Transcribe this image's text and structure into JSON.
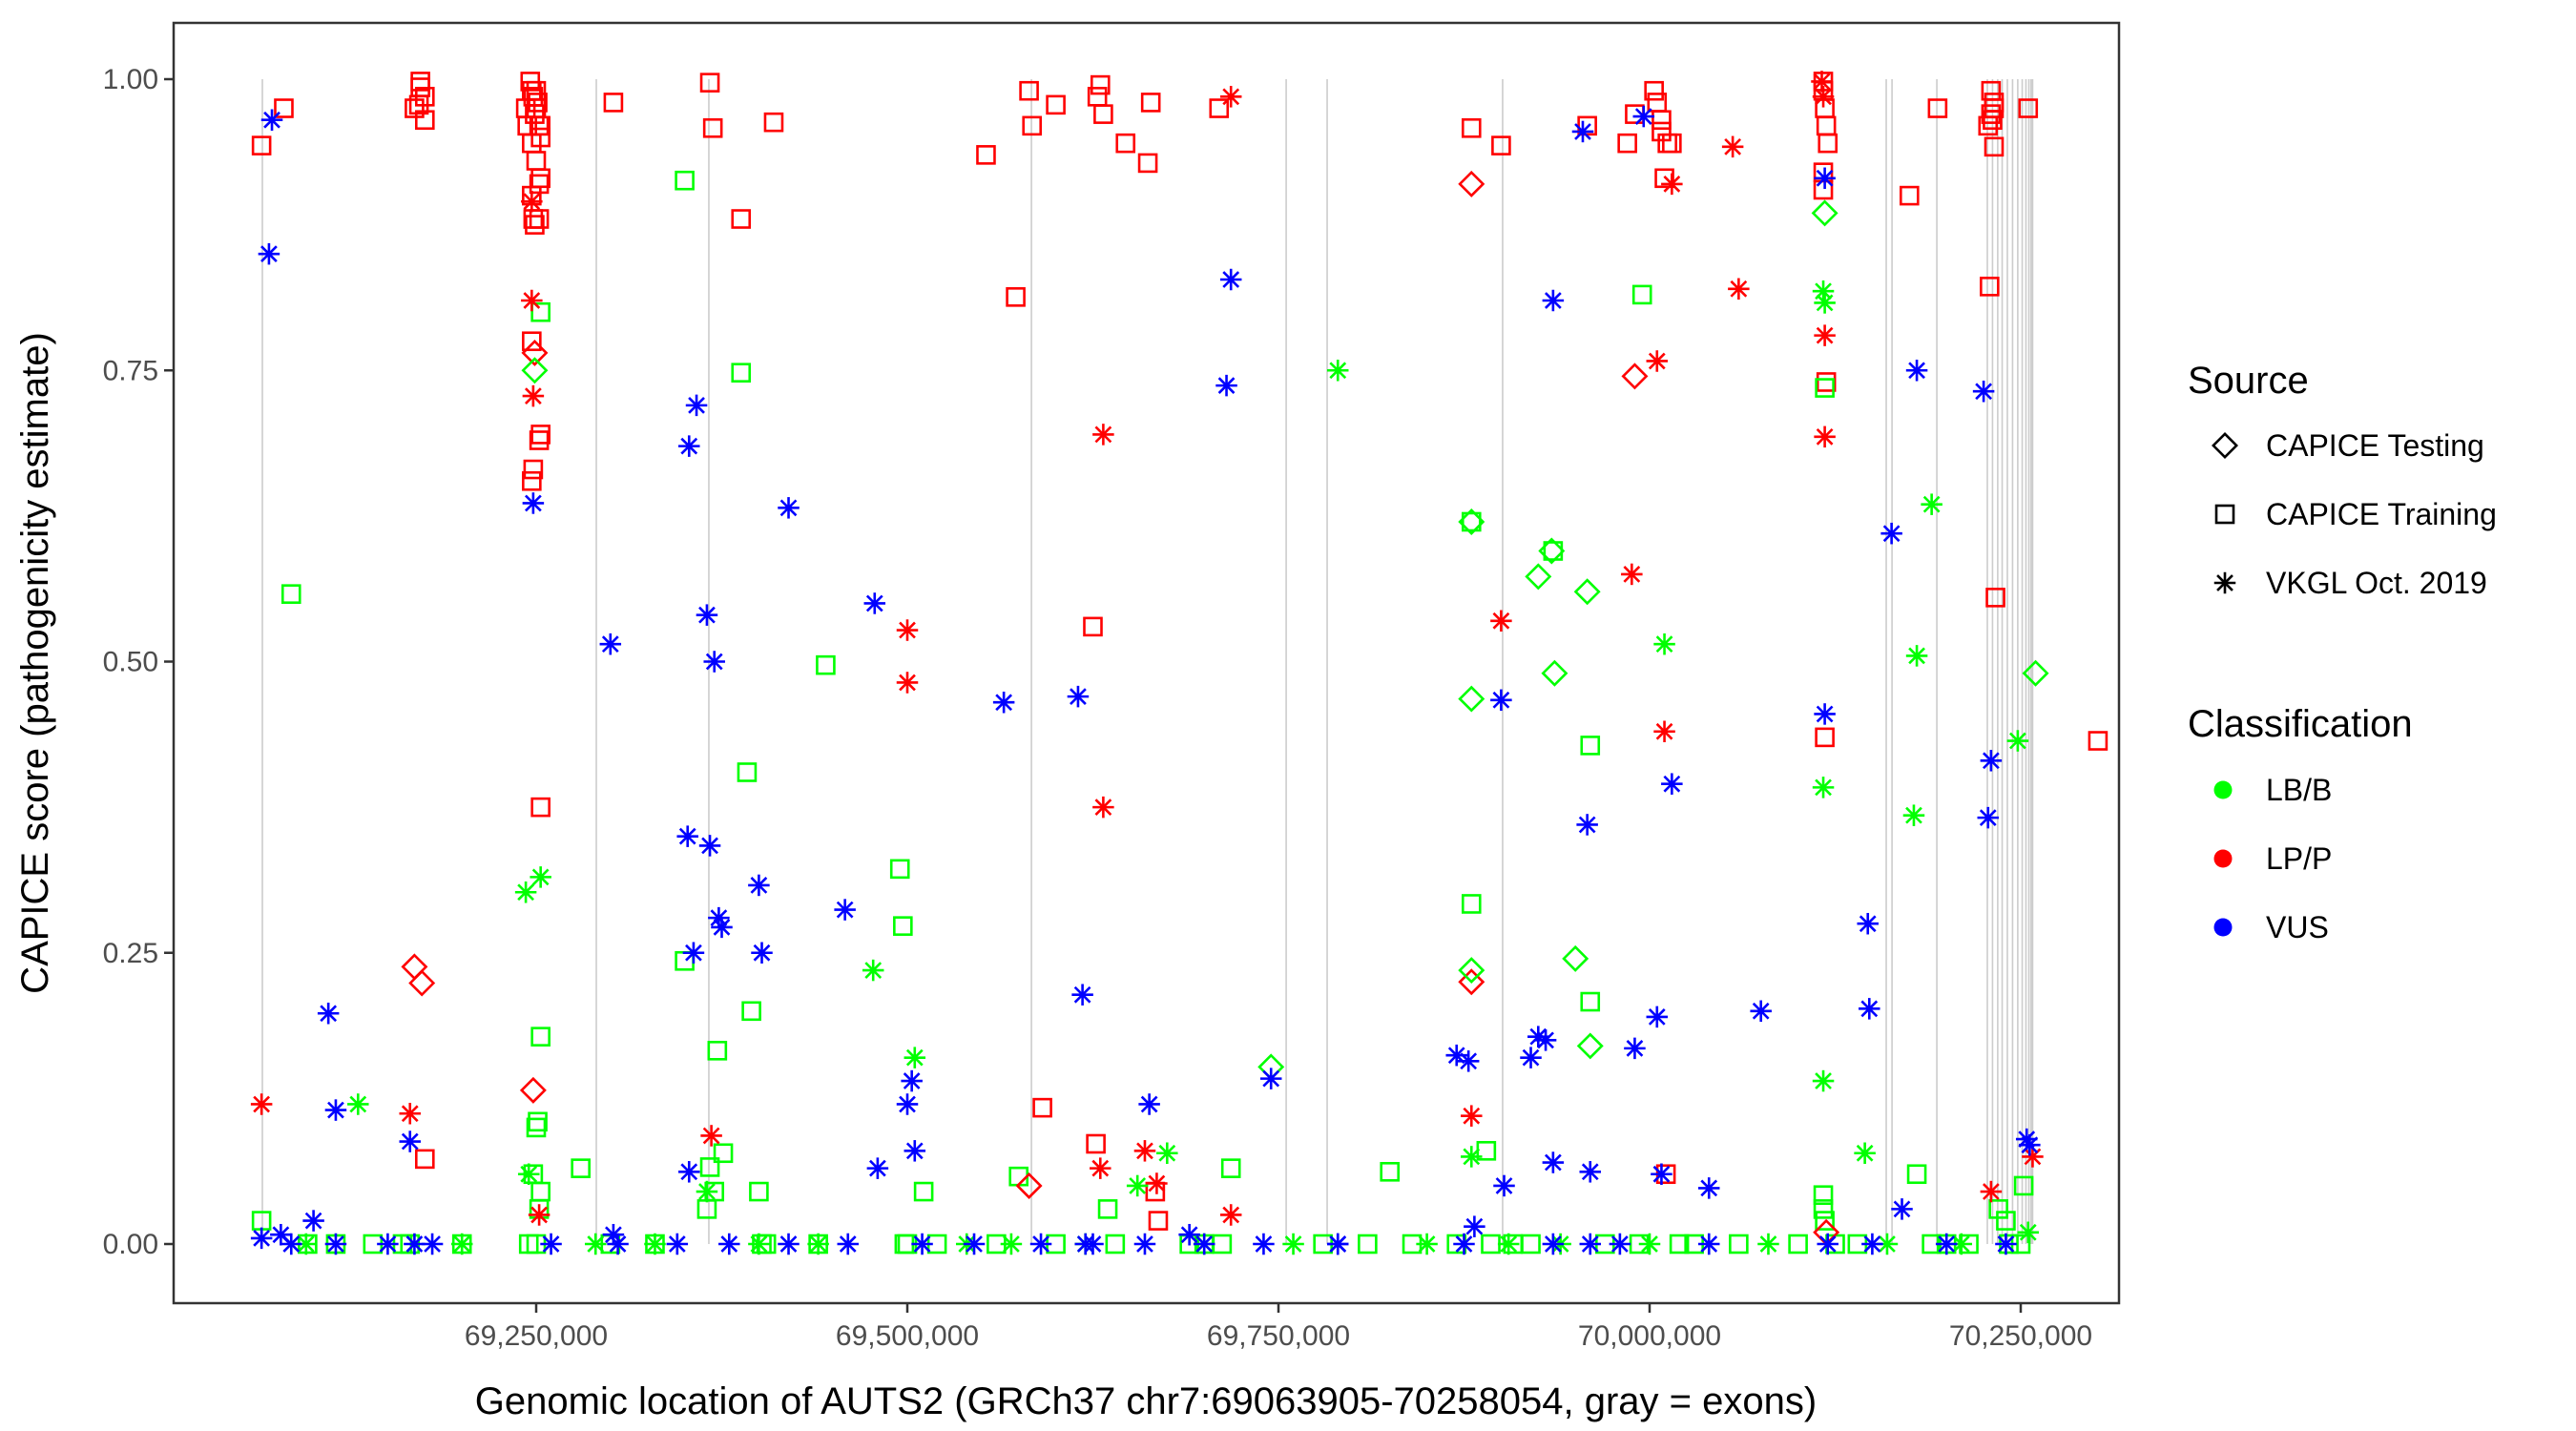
{
  "chart_data": {
    "type": "scatter",
    "title": "",
    "xlabel": "Genomic location of AUTS2 (GRCh37 chr7:69063905-70258054, gray = exons)",
    "ylabel": "CAPICE score (pathogenicity estimate)",
    "xlim": [
      69004000,
      70315000
    ],
    "ylim": [
      -0.05,
      1.05
    ],
    "x_ticks": [
      69250000,
      69500000,
      69750000,
      70000000,
      70250000
    ],
    "x_tick_labels": [
      "69,250,000",
      "69,500,000",
      "69,750,000",
      "70,000,000",
      "70,250,000"
    ],
    "y_ticks": [
      0,
      0.25,
      0.5,
      0.75,
      1.0
    ],
    "y_tick_labels": [
      "0.00",
      "0.25",
      "0.50",
      "0.75",
      "1.00"
    ],
    "grid": false,
    "exon_lines": [
      69065550,
      69290500,
      69366300,
      69583600,
      69755200,
      69782800,
      69901000,
      70159400,
      70163300,
      70193500,
      70227500,
      70231000,
      70234500,
      70237500,
      70241000,
      70244500,
      70248000,
      70251000,
      70253500,
      70255500,
      70257000,
      70258000
    ],
    "exon_color": "#cccccc",
    "legend": {
      "placement": "right",
      "source": {
        "title": "Source",
        "items": [
          {
            "label": "CAPICE Testing",
            "shape": "diamond"
          },
          {
            "label": "CAPICE Training",
            "shape": "square"
          },
          {
            "label": "VKGL Oct. 2019",
            "shape": "asterisk"
          }
        ]
      },
      "classification": {
        "title": "Classification",
        "items": [
          {
            "label": "LB/B",
            "color": "#00ff00"
          },
          {
            "label": "LP/P",
            "color": "#ff0000"
          },
          {
            "label": "VUS",
            "color": "#0000ff"
          }
        ]
      }
    },
    "series": [
      {
        "name": "CAPICE Training / LP/P",
        "shape": "square",
        "color": "#ff0000",
        "x": [
          69065000,
          69080000,
          69168000,
          69171000,
          69172000,
          69172000,
          69175000,
          69175000,
          69243000,
          69246000,
          69247000,
          69248000,
          69249000,
          69250000,
          69251000,
          69252000,
          69253000,
          69250000,
          69252000,
          69248000,
          69247000,
          69249000,
          69252000,
          69247000,
          69248000,
          69253000,
          69252000,
          69253000,
          69247000,
          69247000,
          69244000,
          69253000,
          69250000,
          69253000,
          69302000,
          69367000,
          69369000,
          69388000,
          69410000,
          69553000,
          69573000,
          69582000,
          69584000,
          69600000,
          69625000,
          69628000,
          69630000,
          69632000,
          69647000,
          69662000,
          69664000,
          69710000,
          69880000,
          69900000,
          69958000,
          69985000,
          69990000,
          70003000,
          70005000,
          70008000,
          70008000,
          70010000,
          70012000,
          70015000,
          70117000,
          70117000,
          70118000,
          70119000,
          70120000,
          70117000,
          70118000,
          70117000,
          70119000,
          70175000,
          70194000,
          70230000,
          70232000,
          70228000,
          70231000,
          70232000,
          70229000,
          70233000,
          70255000,
          70230000,
          70232000,
          70302000,
          69175000,
          69591000,
          69627000,
          69667000,
          70011000,
          69669000
        ],
        "y": [
          0.943,
          0.975,
          0.975,
          0.978,
          0.993,
          0.998,
          0.985,
          0.965,
          0.975,
          0.998,
          0.99,
          0.985,
          0.97,
          0.99,
          0.98,
          0.96,
          0.95,
          0.93,
          0.91,
          0.88,
          0.9,
          0.875,
          0.88,
          0.775,
          0.665,
          0.695,
          0.69,
          0.375,
          0.655,
          0.945,
          0.96,
          0.96,
          0.975,
          0.915,
          0.98,
          0.997,
          0.958,
          0.88,
          0.963,
          0.935,
          0.813,
          0.99,
          0.96,
          0.978,
          0.53,
          0.985,
          0.995,
          0.97,
          0.945,
          0.928,
          0.98,
          0.975,
          0.958,
          0.943,
          0.96,
          0.945,
          0.97,
          0.99,
          0.98,
          0.965,
          0.955,
          0.915,
          0.945,
          0.945,
          0.998,
          0.99,
          0.975,
          0.96,
          0.945,
          0.92,
          0.435,
          0.905,
          0.74,
          0.9,
          0.975,
          0.99,
          0.98,
          0.96,
          0.965,
          0.942,
          0.822,
          0.555,
          0.975,
          0.97,
          0.975,
          0.432,
          0.073,
          0.117,
          0.086,
          0.045,
          0.06,
          0.02
        ]
      },
      {
        "name": "CAPICE Training / LB/B",
        "shape": "square",
        "color": "#00ff00",
        "x": [
          69065000,
          69085000,
          69253000,
          69250000,
          69251000,
          69253000,
          69248000,
          69253000,
          69252000,
          69280000,
          69350000,
          69367000,
          69388000,
          69392000,
          69395000,
          69372000,
          69370000,
          69365000,
          69400000,
          69445000,
          69495000,
          69497000,
          69511000,
          69575000,
          69635000,
          69718000,
          69880000,
          69880000,
          69890000,
          69935000,
          69960000,
          69960000,
          69995000,
          70118000,
          70117000,
          70117000,
          70118000,
          70180000,
          70252000,
          70240000,
          70235000,
          69245000,
          69250000,
          69165000,
          69350000,
          69376000,
          69402000,
          69498000,
          69500000,
          69690000,
          69712000,
          69825000,
          69893000,
          69908000,
          69993000,
          70020000,
          70125000,
          70200000,
          70242000,
          69096000,
          69115000,
          69140000,
          69160000,
          69200000,
          69300000,
          69330000,
          69405000,
          69440000,
          69520000,
          69560000,
          69600000,
          69640000,
          69700000,
          69780000,
          69810000,
          69840000,
          69870000,
          69920000,
          69970000,
          70030000,
          70060000,
          70100000,
          70140000,
          70190000,
          70215000,
          70250000
        ],
        "y": [
          0.02,
          0.558,
          0.8,
          0.1,
          0.105,
          0.178,
          0.06,
          0.045,
          0.03,
          0.065,
          0.913,
          0.066,
          0.748,
          0.405,
          0.2,
          0.166,
          0.045,
          0.03,
          0.045,
          0.497,
          0.322,
          0.273,
          0.045,
          0.058,
          0.03,
          0.065,
          0.292,
          0.62,
          0.08,
          0.595,
          0.428,
          0.208,
          0.815,
          0.735,
          0.042,
          0.03,
          0.02,
          0.06,
          0.05,
          0.02,
          0.03,
          0.0,
          0.0,
          0.0,
          0.243,
          0.078,
          0.0,
          0.0,
          0.0,
          0.0,
          0.0,
          0.062,
          0.0,
          0.0,
          0.0,
          0.0,
          0.0,
          0.0,
          0.0,
          0.0,
          0.0,
          0.0,
          0.0,
          0.0,
          0.0,
          0.0,
          0.0,
          0.0,
          0.0,
          0.0,
          0.0,
          0.0,
          0.0,
          0.0,
          0.0,
          0.0,
          0.0,
          0.0,
          0.0,
          0.0,
          0.0,
          0.0,
          0.0,
          0.0,
          0.0,
          0.0
        ]
      },
      {
        "name": "CAPICE Testing / LP/P",
        "shape": "diamond",
        "color": "#ff0000",
        "x": [
          69168000,
          69173000,
          69249000,
          69248000,
          69582000,
          69880000,
          69880000,
          69990000,
          70119000
        ],
        "y": [
          0.238,
          0.224,
          0.765,
          0.132,
          0.05,
          0.91,
          0.225,
          0.745,
          0.01
        ]
      },
      {
        "name": "CAPICE Testing / LB/B",
        "shape": "diamond",
        "color": "#00ff00",
        "x": [
          69249000,
          69745000,
          69880000,
          69880000,
          69880000,
          69925000,
          69934000,
          69936000,
          69950000,
          69958000,
          69960000,
          70118000,
          70260000
        ],
        "y": [
          0.75,
          0.152,
          0.62,
          0.468,
          0.235,
          0.573,
          0.595,
          0.49,
          0.245,
          0.56,
          0.17,
          0.885,
          0.49
        ]
      },
      {
        "name": "VKGL Oct. 2019 / LP/P",
        "shape": "asterisk",
        "color": "#ff0000",
        "x": [
          69065000,
          69165000,
          69247000,
          69248000,
          69247000,
          69252000,
          69368000,
          69500000,
          69500000,
          69632000,
          69632000,
          69630000,
          69660000,
          69668000,
          69718000,
          69718000,
          69880000,
          69900000,
          69988000,
          70005000,
          70010000,
          70015000,
          70056000,
          70060000,
          70118000,
          70118000,
          70116000,
          70117000,
          70230000,
          70258000
        ],
        "y": [
          0.12,
          0.112,
          0.81,
          0.728,
          0.895,
          0.025,
          0.093,
          0.527,
          0.482,
          0.695,
          0.375,
          0.065,
          0.08,
          0.052,
          0.985,
          0.025,
          0.11,
          0.535,
          0.575,
          0.758,
          0.44,
          0.91,
          0.942,
          0.82,
          0.78,
          0.693,
          0.998,
          0.985,
          0.045,
          0.075
        ]
      },
      {
        "name": "VKGL Oct. 2019 / LB/B",
        "shape": "asterisk",
        "color": "#00ff00",
        "x": [
          69130000,
          69243000,
          69253000,
          69245000,
          69330000,
          69365000,
          69477000,
          69505000,
          69570000,
          69655000,
          69675000,
          69790000,
          69880000,
          69905000,
          70010000,
          70117000,
          70118000,
          70117000,
          70117000,
          70145000,
          70180000,
          70178000,
          70190000,
          70248000,
          69095000,
          69200000,
          69290000,
          69400000,
          69440000,
          69540000,
          69620000,
          69700000,
          69760000,
          69850000,
          69940000,
          70000000,
          70080000,
          70160000,
          70210000,
          70255000
        ],
        "y": [
          0.12,
          0.302,
          0.315,
          0.06,
          0.0,
          0.045,
          0.235,
          0.16,
          0.0,
          0.05,
          0.078,
          0.75,
          0.075,
          0.0,
          0.515,
          0.818,
          0.808,
          0.392,
          0.14,
          0.078,
          0.505,
          0.368,
          0.635,
          0.432,
          0.0,
          0.0,
          0.0,
          0.0,
          0.0,
          0.0,
          0.0,
          0.0,
          0.0,
          0.0,
          0.0,
          0.0,
          0.0,
          0.0,
          0.0,
          0.01
        ]
      },
      {
        "name": "VKGL Oct. 2019 / VUS",
        "shape": "asterisk",
        "color": "#0000ff",
        "x": [
          69072000,
          69070000,
          69078000,
          69100000,
          69110000,
          69115000,
          69165000,
          69168000,
          69248000,
          69300000,
          69302000,
          69352000,
          69353000,
          69353000,
          69356000,
          69358000,
          69365000,
          69367000,
          69370000,
          69373000,
          69375000,
          69400000,
          69402000,
          69420000,
          69458000,
          69478000,
          69480000,
          69500000,
          69503000,
          69505000,
          69565000,
          69615000,
          69618000,
          69620000,
          69663000,
          69690000,
          69715000,
          69718000,
          69745000,
          69790000,
          69870000,
          69878000,
          69882000,
          69900000,
          69902000,
          69920000,
          69925000,
          69930000,
          69935000,
          69935000,
          69955000,
          69958000,
          69960000,
          69990000,
          69996000,
          70005000,
          70008000,
          70015000,
          70040000,
          70075000,
          70118000,
          70118000,
          70147000,
          70148000,
          70163000,
          70170000,
          70180000,
          70225000,
          70228000,
          70230000,
          70254000,
          70256000,
          69065000,
          69085000,
          69115000,
          69150000,
          69180000,
          69260000,
          69305000,
          69345000,
          69380000,
          69420000,
          69460000,
          69510000,
          69545000,
          69590000,
          69625000,
          69660000,
          69700000,
          69740000,
          69790000,
          69875000,
          69935000,
          69960000,
          69980000,
          70040000,
          70120000,
          70150000,
          70200000,
          70240000
        ],
        "y": [
          0.965,
          0.85,
          0.008,
          0.02,
          0.198,
          0.115,
          0.088,
          0.0,
          0.636,
          0.515,
          0.008,
          0.35,
          0.685,
          0.062,
          0.25,
          0.72,
          0.54,
          0.342,
          0.5,
          0.28,
          0.272,
          0.308,
          0.25,
          0.632,
          0.287,
          0.55,
          0.065,
          0.12,
          0.14,
          0.08,
          0.465,
          0.47,
          0.214,
          0.0,
          0.12,
          0.008,
          0.737,
          0.828,
          0.142,
          0.0,
          0.162,
          0.157,
          0.015,
          0.467,
          0.05,
          0.16,
          0.178,
          0.175,
          0.81,
          0.07,
          0.955,
          0.36,
          0.062,
          0.168,
          0.968,
          0.195,
          0.06,
          0.395,
          0.048,
          0.2,
          0.915,
          0.455,
          0.275,
          0.202,
          0.61,
          0.03,
          0.75,
          0.732,
          0.366,
          0.415,
          0.09,
          0.085,
          0.005,
          0.0,
          0.0,
          0.0,
          0.0,
          0.0,
          0.0,
          0.0,
          0.0,
          0.0,
          0.0,
          0.0,
          0.0,
          0.0,
          0.0,
          0.0,
          0.0,
          0.0,
          0.0,
          0.0,
          0.0,
          0.0,
          0.0,
          0.0,
          0.0,
          0.0,
          0.0,
          0.0
        ]
      }
    ]
  }
}
